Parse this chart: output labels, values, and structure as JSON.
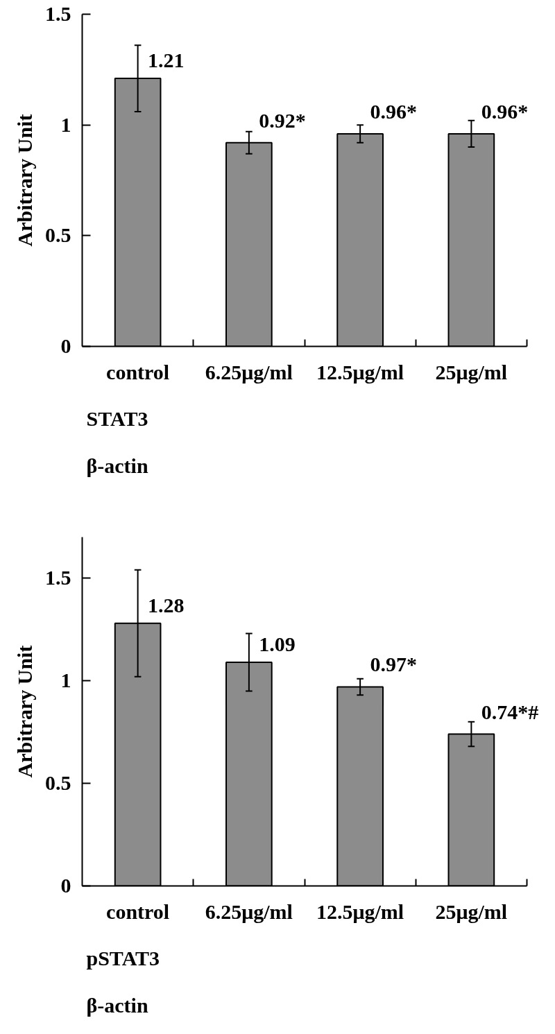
{
  "chart_data": [
    {
      "type": "bar",
      "ylabel": "Arbitrary Unit",
      "categories": [
        "control",
        "6.25μg/ml",
        "12.5μg/ml",
        "25μg/ml"
      ],
      "values": [
        1.21,
        0.92,
        0.96,
        0.96
      ],
      "errors": [
        0.15,
        0.05,
        0.04,
        0.06
      ],
      "value_labels": [
        "1.21",
        "0.92*",
        "0.96*",
        "0.96*"
      ],
      "color": "#8c8c8c",
      "ylim": [
        0,
        1.5
      ],
      "yticks": [
        0,
        0.5,
        1,
        1.5
      ],
      "annotations": [
        "STAT3",
        "β-actin"
      ]
    },
    {
      "type": "bar",
      "ylabel": "Arbitrary Unit",
      "categories": [
        "control",
        "6.25μg/ml",
        "12.5μg/ml",
        "25μg/ml"
      ],
      "values": [
        1.28,
        1.09,
        0.97,
        0.74
      ],
      "errors": [
        0.26,
        0.14,
        0.04,
        0.06
      ],
      "value_labels": [
        "1.28",
        "1.09",
        "0.97*",
        "0.74*#"
      ],
      "color": "#8c8c8c",
      "ylim": [
        0,
        1.7
      ],
      "yticks": [
        0,
        0.5,
        1,
        1.5
      ],
      "annotations": [
        "pSTAT3",
        "β-actin"
      ]
    }
  ]
}
